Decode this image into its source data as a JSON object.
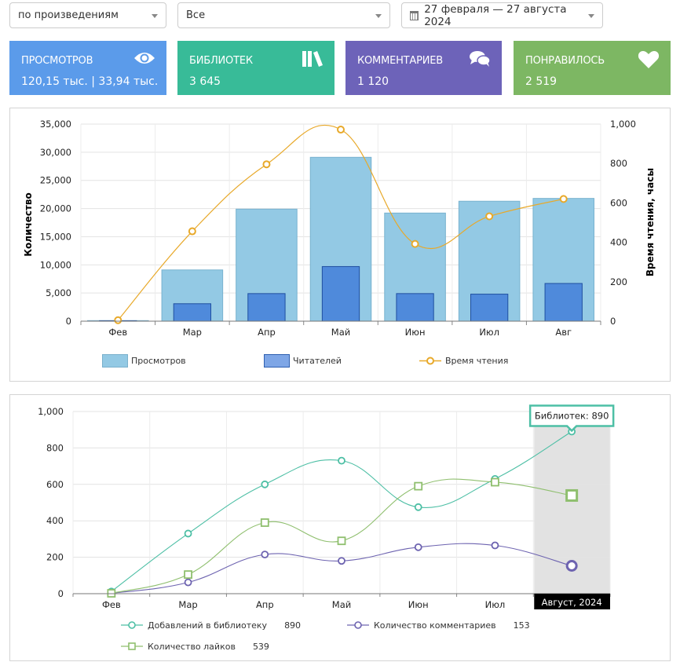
{
  "filters": {
    "group_by": "по произведениям",
    "scope": "Все",
    "date_range": "27 февраля — 27 августа 2024"
  },
  "cards": [
    {
      "label": "ПРОСМОТРОВ",
      "value": "120,15 тыс. | 33,94 тыс.",
      "icon": "eye-icon",
      "color": "#5b9bea"
    },
    {
      "label": "БИБЛИОТЕК",
      "value": "3 645",
      "icon": "books-icon",
      "color": "#38bb98"
    },
    {
      "label": "КОММЕНТАРИЕВ",
      "value": "1 120",
      "icon": "comments-icon",
      "color": "#6d63b9"
    },
    {
      "label": "ПОНРАВИЛОСЬ",
      "value": "2 519",
      "icon": "heart-icon",
      "color": "#7db763"
    }
  ],
  "chart_data": [
    {
      "type": "bar",
      "title": "",
      "categories": [
        "Фев",
        "Мар",
        "Апр",
        "Май",
        "Июн",
        "Июл",
        "Авг"
      ],
      "ylabel": "Количество",
      "ylabel_right": "Время чтения, часы",
      "ylim": [
        0,
        35000
      ],
      "ylim_right": [
        0,
        1000
      ],
      "yticks": [
        "0",
        "5,000",
        "10,000",
        "15,000",
        "20,000",
        "25,000",
        "30,000",
        "35,000"
      ],
      "yticks_right": [
        "0",
        "200",
        "400",
        "600",
        "800",
        "1,000"
      ],
      "grid": true,
      "legend_position": "bottom",
      "series": [
        {
          "name": "Просмотров",
          "kind": "bar",
          "axis": "left",
          "color": "#93c9e4",
          "values": [
            100,
            9100,
            19900,
            29100,
            19200,
            21300,
            21800
          ]
        },
        {
          "name": "Читателей",
          "kind": "bar",
          "axis": "left",
          "color": "#4f8adb",
          "values": [
            80,
            3100,
            4900,
            9700,
            4900,
            4800,
            6700
          ]
        },
        {
          "name": "Время чтения",
          "kind": "line",
          "axis": "right",
          "color": "#e8a92a",
          "values": [
            5,
            456,
            796,
            972,
            392,
            532,
            620
          ]
        }
      ]
    },
    {
      "type": "line",
      "title": "",
      "categories": [
        "Фев",
        "Мар",
        "Апр",
        "Май",
        "Июн",
        "Июл",
        "Август, 2024"
      ],
      "ylim": [
        0,
        1000
      ],
      "yticks": [
        "0",
        "200",
        "400",
        "600",
        "800",
        "1,000"
      ],
      "grid": true,
      "legend_position": "bottom",
      "highlight_category": "Август, 2024",
      "tooltip": "Библиотек: 890",
      "series": [
        {
          "name": "Добавлений в библиотеку",
          "legend_value": "890",
          "marker": "circle",
          "color": "#4dbfa5",
          "values": [
            12,
            330,
            600,
            730,
            475,
            630,
            890
          ]
        },
        {
          "name": "Количество комментариев",
          "legend_value": "153",
          "marker": "circle",
          "color": "#6d63b0",
          "values": [
            2,
            62,
            215,
            180,
            255,
            265,
            153
          ]
        },
        {
          "name": "Количество лайков",
          "legend_value": "539",
          "marker": "square",
          "color": "#8fbf6e",
          "values": [
            2,
            105,
            390,
            290,
            590,
            612,
            539
          ]
        }
      ]
    }
  ]
}
